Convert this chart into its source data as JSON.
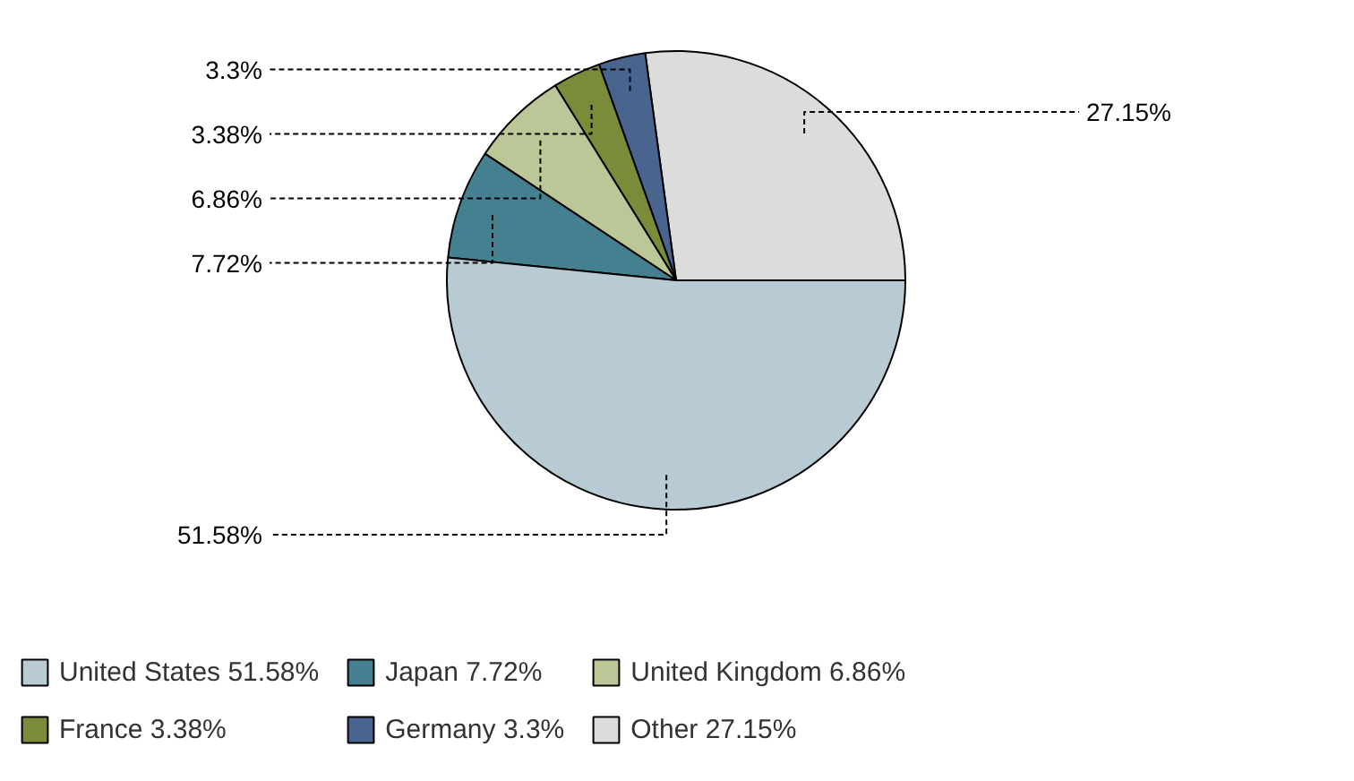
{
  "chart_data": {
    "type": "pie",
    "categories": [
      "United States",
      "Japan",
      "United Kingdom",
      "France",
      "Germany",
      "Other"
    ],
    "values": [
      51.58,
      7.72,
      6.86,
      3.38,
      3.3,
      27.15
    ],
    "colors": [
      "#b8cbd4",
      "#44808f",
      "#bbc796",
      "#7a8c3a",
      "#4a6490",
      "#dcdcdc"
    ],
    "value_labels": [
      "51.58%",
      "7.72%",
      "6.86%",
      "3.38%",
      "3.3%",
      "27.15%"
    ],
    "legend": "bottom"
  }
}
